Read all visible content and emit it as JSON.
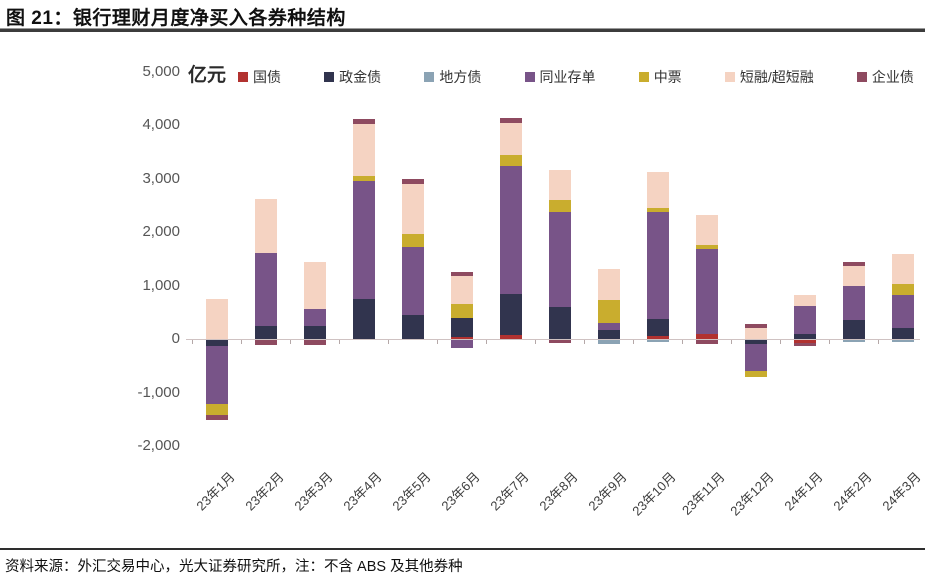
{
  "figure": {
    "title": "图 21：银行理财月度净买入各券种结构",
    "source_note": "资料来源：外汇交易中心，光大证券研究所，注：不含 ABS 及其他券种"
  },
  "chart_data": {
    "type": "bar",
    "stacked": true,
    "title": "银行理财月度净买入各券种结构",
    "unit_label": "亿元",
    "xlabel": "",
    "ylabel": "亿元",
    "ylim": [
      -2000,
      5000
    ],
    "grid": false,
    "legend_position": "top",
    "categories": [
      "23年1月",
      "23年2月",
      "23年3月",
      "23年4月",
      "23年5月",
      "23年6月",
      "23年7月",
      "23年8月",
      "23年9月",
      "23年10月",
      "23年11月",
      "23年12月",
      "24年1月",
      "24年2月",
      "24年3月"
    ],
    "y_ticks": [
      5000,
      4000,
      3000,
      2000,
      1000,
      0,
      -1000,
      -2000
    ],
    "y_tick_labels": [
      "5,000",
      "4,000",
      "3,000",
      "2,000",
      "1,000",
      "0",
      "-1,000",
      "-2,000"
    ],
    "series": [
      {
        "name": "国债",
        "color": "#b23230",
        "values": [
          0,
          0,
          0,
          0,
          0,
          30,
          80,
          0,
          0,
          60,
          90,
          0,
          -50,
          0,
          0
        ]
      },
      {
        "name": "政金债",
        "color": "#31344e",
        "values": [
          -110,
          250,
          240,
          750,
          450,
          370,
          760,
          600,
          170,
          320,
          0,
          -80,
          100,
          355,
          200
        ]
      },
      {
        "name": "地方债",
        "color": "#8ba3b4",
        "values": [
          0,
          0,
          0,
          0,
          0,
          0,
          0,
          0,
          -80,
          -40,
          0,
          0,
          0,
          -40,
          -40
        ]
      },
      {
        "name": "同业存单",
        "color": "#785488",
        "values": [
          -1090,
          1365,
          320,
          2200,
          1270,
          -150,
          2400,
          1775,
          120,
          2000,
          1600,
          -500,
          520,
          640,
          630
        ]
      },
      {
        "name": "中票",
        "color": "#c9ad2e",
        "values": [
          -210,
          0,
          0,
          95,
          245,
          245,
          200,
          225,
          435,
          75,
          60,
          -120,
          0,
          0,
          200
        ]
      },
      {
        "name": "短融/超短融",
        "color": "#f5d3c2",
        "values": [
          750,
          1010,
          880,
          975,
          935,
          525,
          600,
          560,
          590,
          670,
          560,
          200,
          210,
          375,
          560
        ]
      },
      {
        "name": "企业债",
        "color": "#8e4a60",
        "values": [
          -90,
          -90,
          -90,
          90,
          90,
          75,
          90,
          -60,
          0,
          0,
          -70,
          80,
          -70,
          75,
          0
        ]
      }
    ]
  }
}
